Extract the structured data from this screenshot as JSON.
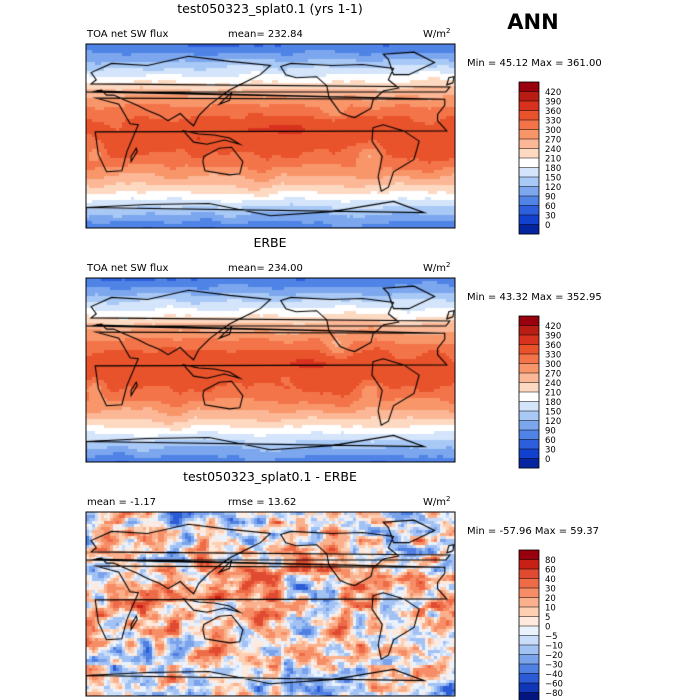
{
  "figure_label": "ANN",
  "chart_data": [
    {
      "type": "heatmap",
      "title": "test050323_splat0.1 (yrs 1-1)",
      "field_label": "TOA net SW flux",
      "stat_text": "mean= 232.84",
      "mean": 232.84,
      "units_base": "W/m",
      "units_exp": "2",
      "minmax_text": "Min =  45.12 Max = 361.00",
      "min": 45.12,
      "max": 361.0,
      "colorbar": {
        "levels": [
          "420",
          "390",
          "360",
          "330",
          "300",
          "270",
          "240",
          "210",
          "180",
          "150",
          "120",
          "90",
          "60",
          "30",
          "0"
        ],
        "colors": [
          "#99000d",
          "#b81d13",
          "#d8321f",
          "#e8532b",
          "#f4744a",
          "#f8966a",
          "#fbb796",
          "#fdd9c2",
          "#ffffff",
          "#d3e4fb",
          "#a8c8f5",
          "#7ca7ee",
          "#4f83e6",
          "#2d5fdc",
          "#1240cf",
          "#05249f"
        ]
      }
    },
    {
      "type": "heatmap",
      "title": "ERBE",
      "field_label": "TOA net SW flux",
      "stat_text": "mean= 234.00",
      "mean": 234.0,
      "units_base": "W/m",
      "units_exp": "2",
      "minmax_text": "Min =  43.32 Max = 352.95",
      "min": 43.32,
      "max": 352.95,
      "colorbar": {
        "levels": [
          "420",
          "390",
          "360",
          "330",
          "300",
          "270",
          "240",
          "210",
          "180",
          "150",
          "120",
          "90",
          "60",
          "30",
          "0"
        ],
        "colors": [
          "#99000d",
          "#b81d13",
          "#d8321f",
          "#e8532b",
          "#f4744a",
          "#f8966a",
          "#fbb796",
          "#fdd9c2",
          "#ffffff",
          "#d3e4fb",
          "#a8c8f5",
          "#7ca7ee",
          "#4f83e6",
          "#2d5fdc",
          "#1240cf",
          "#05249f"
        ]
      }
    },
    {
      "type": "heatmap",
      "title": "test050323_splat0.1 - ERBE",
      "field_label": "mean =   -1.17",
      "stat_text": "rmse =   13.62",
      "mean": -1.17,
      "rmse": 13.62,
      "units_base": "W/m",
      "units_exp": "2",
      "minmax_text": "Min = -57.96 Max =   59.37",
      "min": -57.96,
      "max": 59.37,
      "colorbar": {
        "levels": [
          "80",
          "60",
          "40",
          "30",
          "20",
          "10",
          "5",
          "0",
          "−5",
          "−10",
          "−20",
          "−30",
          "−40",
          "−60",
          "−80"
        ],
        "colors": [
          "#99000d",
          "#c81f17",
          "#e04a30",
          "#ee6b47",
          "#f68d66",
          "#fab08c",
          "#fdcfb3",
          "#fee9dc",
          "#eaf2fe",
          "#c9dcfa",
          "#a2c2f4",
          "#7aa3ec",
          "#4f80e2",
          "#2b5bd5",
          "#0f36b6",
          "#03157e"
        ]
      }
    }
  ]
}
